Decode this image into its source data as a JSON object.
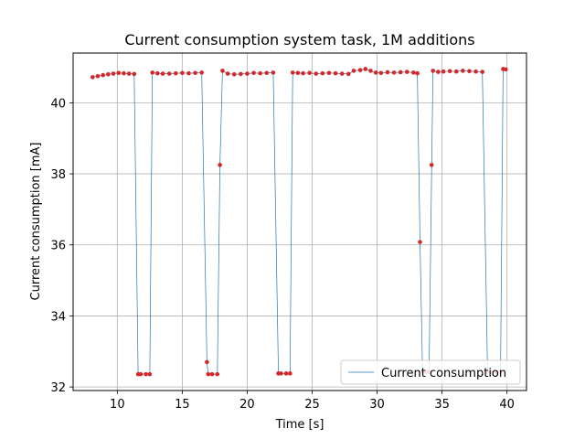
{
  "chart_data": {
    "type": "line",
    "title": "Current consumption system task, 1M additions",
    "xlabel": "Time [s]",
    "ylabel": "Current consumption [mA]",
    "xlim": [
      6.6,
      41.5
    ],
    "ylim": [
      31.9,
      41.4
    ],
    "xticks": [
      10,
      15,
      20,
      25,
      30,
      35,
      40
    ],
    "yticks": [
      32,
      34,
      36,
      38,
      40
    ],
    "grid": true,
    "legend_position": "lower-right",
    "series": [
      {
        "name": "Current consumption",
        "line_color": "#1f77b4",
        "marker_color": "#d62728",
        "x": [
          8.1,
          8.5,
          8.9,
          9.3,
          9.7,
          10.1,
          10.5,
          10.9,
          11.3,
          11.6,
          11.8,
          12.2,
          12.5,
          12.7,
          13.1,
          13.5,
          14.0,
          14.5,
          15.0,
          15.5,
          16.0,
          16.5,
          16.9,
          17.0,
          17.3,
          17.7,
          17.9,
          18.1,
          18.5,
          19.0,
          19.5,
          20.0,
          20.5,
          21.0,
          21.5,
          22.0,
          22.4,
          22.6,
          23.0,
          23.3,
          23.5,
          23.9,
          24.3,
          24.8,
          25.3,
          25.8,
          26.3,
          26.8,
          27.3,
          27.8,
          28.2,
          28.7,
          29.1,
          29.5,
          29.9,
          30.3,
          30.8,
          31.3,
          31.8,
          32.3,
          32.8,
          33.1,
          33.3,
          33.5,
          33.8,
          34.0,
          34.2,
          34.3,
          34.7,
          35.1,
          35.6,
          36.1,
          36.6,
          37.1,
          37.6,
          38.1,
          38.5,
          38.8,
          39.2,
          39.5,
          39.7,
          39.9
        ],
        "y": [
          40.72,
          40.75,
          40.78,
          40.8,
          40.82,
          40.84,
          40.83,
          40.82,
          40.81,
          32.36,
          32.36,
          32.36,
          32.36,
          40.85,
          40.83,
          40.82,
          40.82,
          40.83,
          40.84,
          40.83,
          40.84,
          40.85,
          32.7,
          32.36,
          32.36,
          32.36,
          38.25,
          40.9,
          40.82,
          40.8,
          40.81,
          40.82,
          40.84,
          40.83,
          40.84,
          40.85,
          32.38,
          32.38,
          32.38,
          32.38,
          40.85,
          40.84,
          40.83,
          40.84,
          40.82,
          40.83,
          40.84,
          40.83,
          40.82,
          40.81,
          40.9,
          40.92,
          40.95,
          40.9,
          40.85,
          40.84,
          40.86,
          40.85,
          40.86,
          40.87,
          40.85,
          40.83,
          36.08,
          32.42,
          32.42,
          32.42,
          38.25,
          40.9,
          40.87,
          40.88,
          40.89,
          40.88,
          40.9,
          40.89,
          40.88,
          40.87,
          32.42,
          32.42,
          32.42,
          32.42,
          40.95,
          40.94
        ]
      }
    ]
  }
}
